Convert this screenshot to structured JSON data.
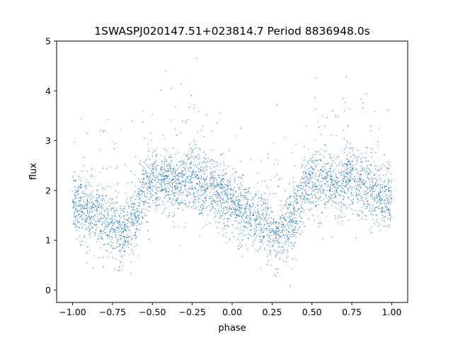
{
  "chart_data": {
    "type": "scatter",
    "title": "1SWASPJ020147.51+023814.7 Period 8836948.0s",
    "xlabel": "phase",
    "ylabel": "flux",
    "xlim": [
      -1.1,
      1.1
    ],
    "ylim": [
      -0.25,
      5.0
    ],
    "xticks": [
      -1.0,
      -0.75,
      -0.5,
      -0.25,
      0.0,
      0.25,
      0.5,
      0.75,
      1.0
    ],
    "xtick_labels": [
      "−1.00",
      "−0.75",
      "−0.50",
      "−0.25",
      "0.00",
      "0.25",
      "0.50",
      "0.75",
      "1.00"
    ],
    "yticks": [
      0,
      1,
      2,
      3,
      4,
      5
    ],
    "ytick_labels": [
      "0",
      "1",
      "2",
      "3",
      "4",
      "5"
    ],
    "grid": false,
    "color": "#1f77b4",
    "series": [
      {
        "x_range": [
          -1.0,
          1.0
        ],
        "trend": {
          "x": [
            -1.0,
            -0.9,
            -0.85,
            -0.8,
            -0.75,
            -0.7,
            -0.65,
            -0.6,
            -0.55,
            -0.5,
            -0.45,
            -0.4,
            -0.35,
            -0.3,
            -0.25,
            -0.2,
            -0.15,
            -0.1,
            -0.05,
            0.0,
            0.05,
            0.1,
            0.15,
            0.2,
            0.25,
            0.3,
            0.35,
            0.4,
            0.45,
            0.5,
            0.55,
            0.6,
            0.65,
            0.7,
            0.75,
            0.8,
            0.85,
            0.9,
            0.95,
            1.0
          ],
          "y": [
            1.75,
            1.55,
            1.45,
            1.4,
            1.3,
            1.15,
            1.35,
            1.45,
            2.05,
            2.15,
            2.2,
            2.15,
            2.05,
            2.15,
            2.3,
            2.15,
            2.05,
            1.95,
            1.85,
            1.8,
            1.6,
            1.45,
            1.4,
            1.3,
            1.2,
            1.15,
            1.35,
            1.45,
            2.05,
            2.15,
            2.2,
            2.15,
            2.05,
            2.15,
            2.3,
            2.15,
            2.05,
            1.95,
            1.85,
            1.8
          ]
        }
      }
    ]
  }
}
